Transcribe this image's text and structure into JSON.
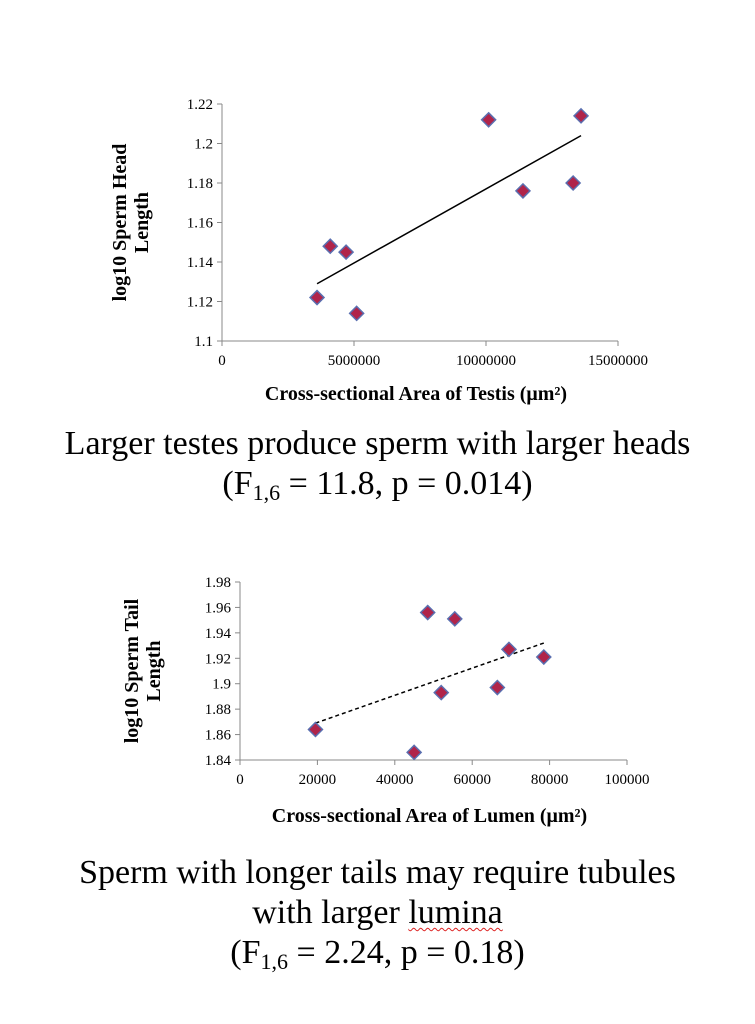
{
  "chart_data": [
    {
      "type": "scatter",
      "xlabel": "Cross-sectional Area of Testis (μm²)",
      "ylabel_lines": [
        "log10 Sperm Head",
        "Length"
      ],
      "xlim": [
        0,
        15000000
      ],
      "ylim": [
        1.1,
        1.22
      ],
      "x_ticks": [
        0,
        5000000,
        10000000,
        15000000
      ],
      "x_tick_labels": [
        "0",
        "5000000",
        "10000000",
        "15000000"
      ],
      "y_ticks": [
        1.1,
        1.12,
        1.14,
        1.16,
        1.18,
        1.2,
        1.22
      ],
      "y_tick_labels": [
        "1.1",
        "1.12",
        "1.14",
        "1.16",
        "1.18",
        "1.2",
        "1.22"
      ],
      "points": [
        {
          "x": 3600000,
          "y": 1.122
        },
        {
          "x": 4100000,
          "y": 1.148
        },
        {
          "x": 4700000,
          "y": 1.145
        },
        {
          "x": 5100000,
          "y": 1.114
        },
        {
          "x": 10100000,
          "y": 1.212
        },
        {
          "x": 11400000,
          "y": 1.176
        },
        {
          "x": 13300000,
          "y": 1.18
        },
        {
          "x": 13600000,
          "y": 1.214
        }
      ],
      "trendline": {
        "style": "solid",
        "x": [
          3600000,
          13600000
        ],
        "y": [
          1.129,
          1.204
        ]
      },
      "marker_color": "#b0244a",
      "marker_edge": "#5a6fb0",
      "grid": false,
      "legend": "none"
    },
    {
      "type": "scatter",
      "xlabel": "Cross-sectional Area of Lumen (μm²)",
      "ylabel_lines": [
        "log10 Sperm Tail",
        "Length"
      ],
      "xlim": [
        0,
        100000
      ],
      "ylim": [
        1.84,
        1.98
      ],
      "x_ticks": [
        0,
        20000,
        40000,
        60000,
        80000,
        100000
      ],
      "x_tick_labels": [
        "0",
        "20000",
        "40000",
        "60000",
        "80000",
        "100000"
      ],
      "y_ticks": [
        1.84,
        1.86,
        1.88,
        1.9,
        1.92,
        1.94,
        1.96,
        1.98
      ],
      "y_tick_labels": [
        "1.84",
        "1.86",
        "1.88",
        "1.9",
        "1.92",
        "1.94",
        "1.96",
        "1.98"
      ],
      "points": [
        {
          "x": 19500,
          "y": 1.864
        },
        {
          "x": 45000,
          "y": 1.846
        },
        {
          "x": 48500,
          "y": 1.956
        },
        {
          "x": 52000,
          "y": 1.893
        },
        {
          "x": 55500,
          "y": 1.951
        },
        {
          "x": 66500,
          "y": 1.897
        },
        {
          "x": 69500,
          "y": 1.927
        },
        {
          "x": 78500,
          "y": 1.921
        }
      ],
      "trendline": {
        "style": "dashed",
        "x": [
          19500,
          78500
        ],
        "y": [
          1.869,
          1.932
        ]
      },
      "marker_color": "#b0244a",
      "marker_edge": "#5a6fb0",
      "grid": false,
      "legend": "none"
    }
  ],
  "captions": {
    "head": {
      "line1": "Larger testes produce sperm with larger heads",
      "stat_open": "(F",
      "stat_sub": "1,6",
      "stat_rest": " = 11.8, p = 0.014)"
    },
    "tail": {
      "line1": "Sperm with longer tails may require tubules",
      "line2_a": "with larger ",
      "line2_b": "lumina",
      "stat_open": "(F",
      "stat_sub": "1,6",
      "stat_rest": " = 2.24, p = 0.18)"
    }
  }
}
